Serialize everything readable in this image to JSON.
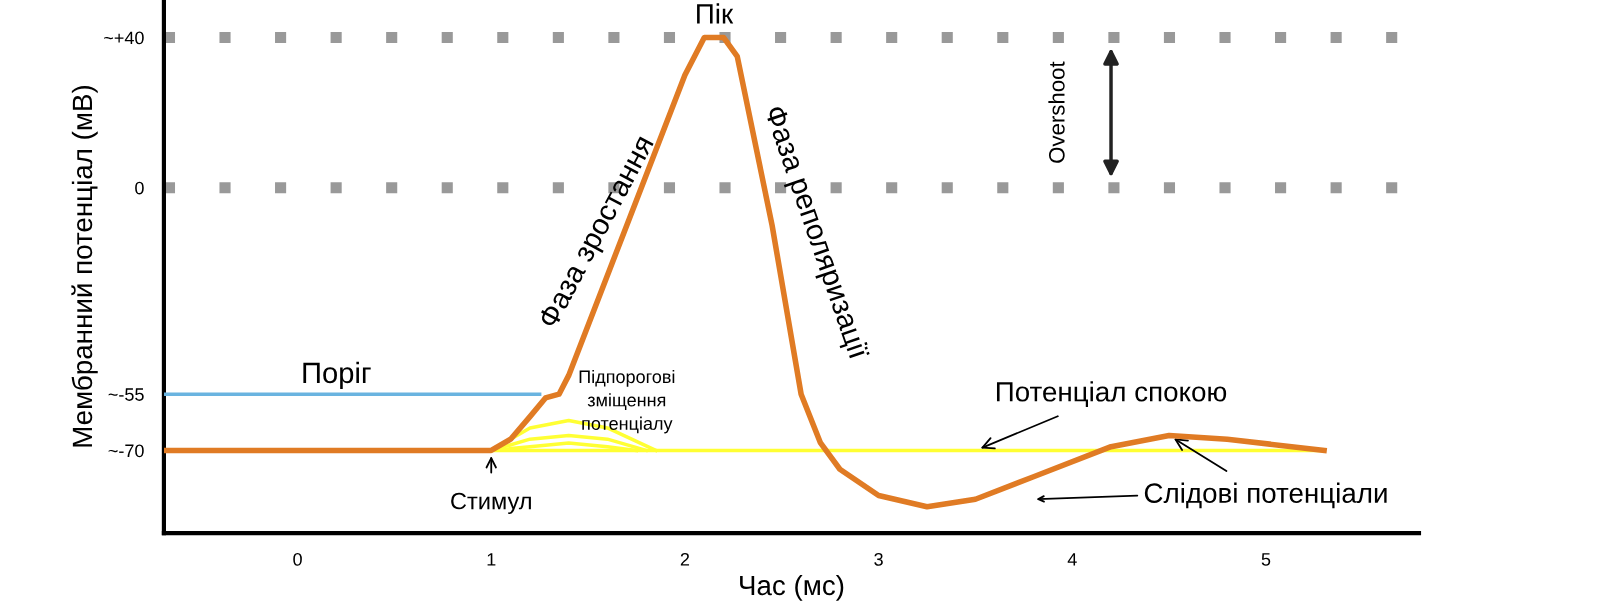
{
  "chart_data": {
    "type": "line",
    "xlabel": "Час (мс)",
    "ylabel": "Мембранний потенціал (мВ)",
    "xlim": [
      -0.69,
      5.79
    ],
    "ylim": [
      -92,
      50
    ],
    "xticks": [
      0,
      1,
      2,
      3,
      4,
      5
    ],
    "yticks": [
      {
        "value": 40,
        "label": "~+40"
      },
      0,
      {
        "value": -55,
        "label": "~-55"
      },
      {
        "value": -70,
        "label": "~-70"
      }
    ],
    "grid": false,
    "legend": false,
    "marker": "none",
    "line_style": "solid",
    "ref_lines": [
      {
        "axis": "y",
        "value": 40,
        "color": "#999999",
        "line_style": "dashed"
      },
      {
        "axis": "y",
        "value": 0,
        "color": "#999999",
        "line_style": "dashed"
      }
    ],
    "series": [
      {
        "color": "#ffff33",
        "x": [
          1.0,
          5.3
        ],
        "values": [
          -70,
          -70
        ]
      },
      {
        "color": "#ffff33",
        "x": [
          1.0,
          1.2,
          1.4,
          1.6,
          1.85
        ],
        "values": [
          -70,
          -64,
          -62,
          -64,
          -70
        ]
      },
      {
        "color": "#ffff33",
        "x": [
          1.0,
          1.2,
          1.4,
          1.6,
          1.8
        ],
        "values": [
          -70,
          -67,
          -66,
          -67,
          -70
        ]
      },
      {
        "color": "#ffff33",
        "x": [
          1.0,
          1.2,
          1.4,
          1.6,
          1.75
        ],
        "values": [
          -70,
          -69,
          -68,
          -69,
          -70
        ]
      },
      {
        "color": "#6ab4e0",
        "x": [
          -0.69,
          1.25
        ],
        "values": [
          -55,
          -55
        ]
      },
      {
        "color": "#e07b24",
        "x": [
          -0.69,
          1.0,
          1.1,
          1.2,
          1.28,
          1.35,
          1.4,
          1.7,
          2.0,
          2.1,
          2.2,
          2.27,
          2.45,
          2.6,
          2.7,
          2.8,
          3.0,
          3.25,
          3.5,
          3.8,
          4.2,
          4.5,
          4.8,
          5.3
        ],
        "values": [
          -70,
          -70,
          -67,
          -61,
          -56,
          -55,
          -50,
          -10,
          30,
          40,
          40,
          35,
          -10,
          -55,
          -68,
          -75,
          -82,
          -85,
          -83,
          -77,
          -69,
          -66,
          -67,
          -70
        ]
      }
    ],
    "annotations": [
      {
        "text": "Пік",
        "x": 2.15,
        "y": 40
      },
      "Фаза зростання",
      "Фаза реполяризації",
      "Поріг",
      "Підпорогові\nзміщення\nпотенціалу",
      {
        "text": "Потенціал спокою",
        "x": 3.5,
        "y": -70
      },
      {
        "text": "Слідові потенціали",
        "x": 4.5,
        "y": -66
      },
      {
        "text": "Стимул",
        "x": 1.0,
        "y": -70
      },
      "Overshoot"
    ]
  }
}
